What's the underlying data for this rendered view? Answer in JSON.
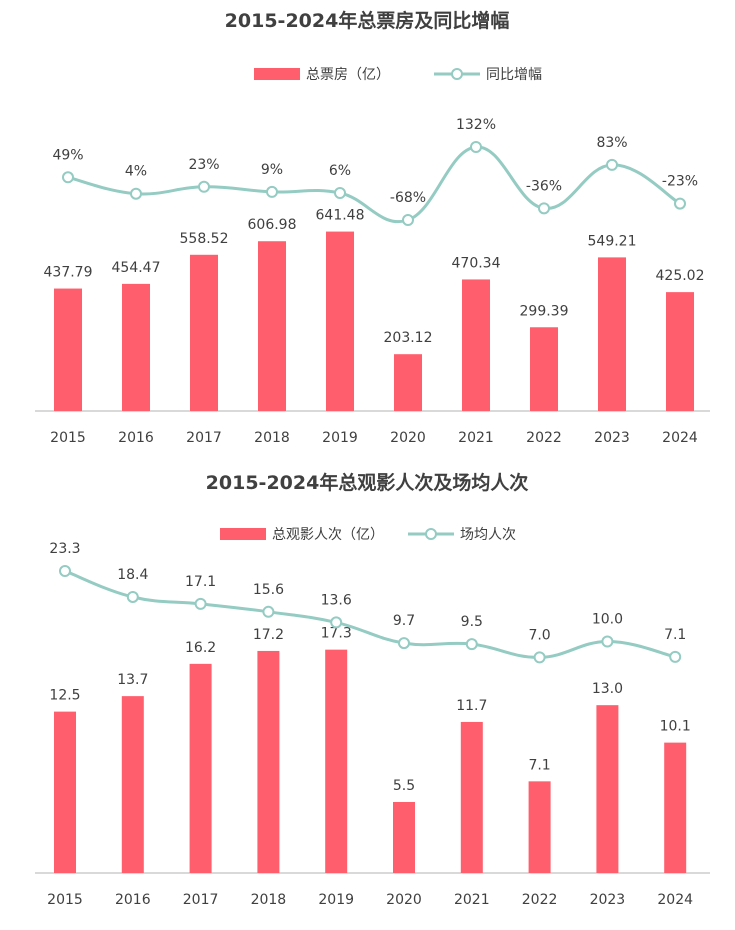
{
  "chart_data": [
    {
      "type": "bar",
      "title": "2015-2024年总票房及同比增幅",
      "categories": [
        "2015",
        "2016",
        "2017",
        "2018",
        "2019",
        "2020",
        "2021",
        "2022",
        "2023",
        "2024"
      ],
      "series": [
        {
          "name": "总票房（亿）",
          "type": "bar",
          "values": [
            437.79,
            454.47,
            558.52,
            606.98,
            641.48,
            203.12,
            470.34,
            299.39,
            549.21,
            425.02
          ],
          "labels": [
            "437.79",
            "454.47",
            "558.52",
            "606.98",
            "641.48",
            "203.12",
            "470.34",
            "299.39",
            "549.21",
            "425.02"
          ],
          "color": "#ff5f6d"
        },
        {
          "name": "同比增幅",
          "type": "line",
          "values": [
            49,
            4,
            23,
            9,
            6,
            -68,
            132,
            -36,
            83,
            -23
          ],
          "labels": [
            "49%",
            "4%",
            "23%",
            "9%",
            "6%",
            "-68%",
            "132%",
            "-36%",
            "83%",
            "-23%"
          ],
          "color": "#94cbc2"
        }
      ],
      "legend": "top-center",
      "grid": false
    },
    {
      "type": "bar",
      "title": "2015-2024年总观影人次及场均人次",
      "categories": [
        "2015",
        "2016",
        "2017",
        "2018",
        "2019",
        "2020",
        "2021",
        "2022",
        "2023",
        "2024"
      ],
      "series": [
        {
          "name": "总观影人次（亿）",
          "type": "bar",
          "values": [
            12.5,
            13.7,
            16.2,
            17.2,
            17.3,
            5.5,
            11.7,
            7.1,
            13.0,
            10.1
          ],
          "labels": [
            "12.5",
            "13.7",
            "16.2",
            "17.2",
            "17.3",
            "5.5",
            "11.7",
            "7.1",
            "13.0",
            "10.1"
          ],
          "color": "#ff5f6d"
        },
        {
          "name": "场均人次",
          "type": "line",
          "values": [
            23.3,
            18.4,
            17.1,
            15.6,
            13.6,
            9.7,
            9.5,
            7.0,
            10.0,
            7.1
          ],
          "labels": [
            "23.3",
            "18.4",
            "17.1",
            "15.6",
            "13.6",
            "9.7",
            "9.5",
            "7.0",
            "10.0",
            "7.1"
          ],
          "color": "#94cbc2"
        }
      ],
      "legend": "top-center",
      "grid": false
    }
  ]
}
